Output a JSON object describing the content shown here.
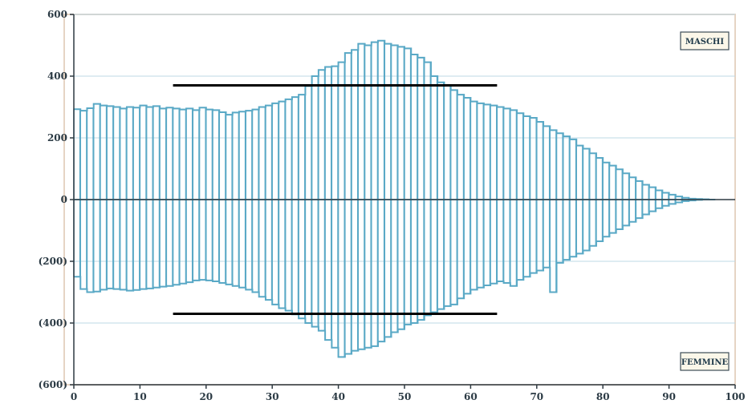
{
  "chart_data": {
    "type": "bar",
    "title": "",
    "xlabel": "",
    "ylabel": "",
    "xlim": [
      0,
      100
    ],
    "ylim": [
      -600,
      600
    ],
    "x_ticks": [
      0,
      10,
      20,
      30,
      40,
      50,
      60,
      70,
      80,
      90,
      100
    ],
    "y_ticks": [
      {
        "value": 600,
        "label": "600"
      },
      {
        "value": 400,
        "label": "400"
      },
      {
        "value": 200,
        "label": "200"
      },
      {
        "value": 0,
        "label": "0"
      },
      {
        "value": -200,
        "label": "(200)"
      },
      {
        "value": -400,
        "label": "(400)"
      },
      {
        "value": -600,
        "label": "(600)"
      }
    ],
    "grid": "horizontal",
    "colors": {
      "bars": "#5aa9c6",
      "reference": "#000000",
      "background": "#ffffff",
      "frame": "#88c3dc",
      "text": "#2b3a44",
      "legend_bg": "#fbf7e9"
    },
    "legend": [
      {
        "name": "MASCHI",
        "position": "top-right"
      },
      {
        "name": "FEMMINE",
        "position": "bottom-right"
      }
    ],
    "series": [
      {
        "name": "MASCHI",
        "values": [
          293,
          288,
          296,
          310,
          305,
          303,
          300,
          295,
          300,
          298,
          305,
          300,
          303,
          295,
          298,
          295,
          292,
          295,
          290,
          298,
          292,
          290,
          283,
          275,
          282,
          285,
          288,
          292,
          300,
          305,
          312,
          318,
          325,
          332,
          340,
          368,
          400,
          420,
          430,
          432,
          445,
          475,
          485,
          505,
          500,
          510,
          515,
          505,
          500,
          495,
          490,
          470,
          460,
          445,
          400,
          380,
          370,
          355,
          340,
          330,
          318,
          312,
          308,
          305,
          300,
          295,
          290,
          280,
          270,
          265,
          252,
          238,
          225,
          215,
          205,
          195,
          175,
          165,
          150,
          135,
          120,
          110,
          98,
          85,
          72,
          60,
          48,
          40,
          30,
          22,
          16,
          10,
          6,
          3,
          2,
          1,
          0
        ]
      },
      {
        "name": "FEMMINE",
        "values": [
          -250,
          -290,
          -300,
          -298,
          -292,
          -288,
          -290,
          -292,
          -295,
          -293,
          -290,
          -288,
          -285,
          -282,
          -280,
          -276,
          -272,
          -268,
          -262,
          -260,
          -262,
          -265,
          -270,
          -275,
          -280,
          -285,
          -292,
          -300,
          -315,
          -325,
          -340,
          -352,
          -360,
          -372,
          -385,
          -400,
          -412,
          -425,
          -455,
          -480,
          -510,
          -500,
          -490,
          -485,
          -480,
          -475,
          -460,
          -445,
          -430,
          -420,
          -405,
          -400,
          -390,
          -375,
          -365,
          -355,
          -345,
          -340,
          -320,
          -305,
          -292,
          -285,
          -278,
          -272,
          -265,
          -270,
          -280,
          -260,
          -250,
          -238,
          -230,
          -220,
          -300,
          -205,
          -195,
          -185,
          -175,
          -165,
          -150,
          -135,
          -120,
          -108,
          -96,
          -84,
          -72,
          -60,
          -48,
          -38,
          -28,
          -20,
          -14,
          -9,
          -5,
          -3,
          -1,
          0
        ]
      }
    ],
    "reference_lines": [
      {
        "value": 370,
        "x_range": [
          15,
          64
        ]
      },
      {
        "value": -370,
        "x_range": [
          15,
          64
        ]
      }
    ]
  }
}
